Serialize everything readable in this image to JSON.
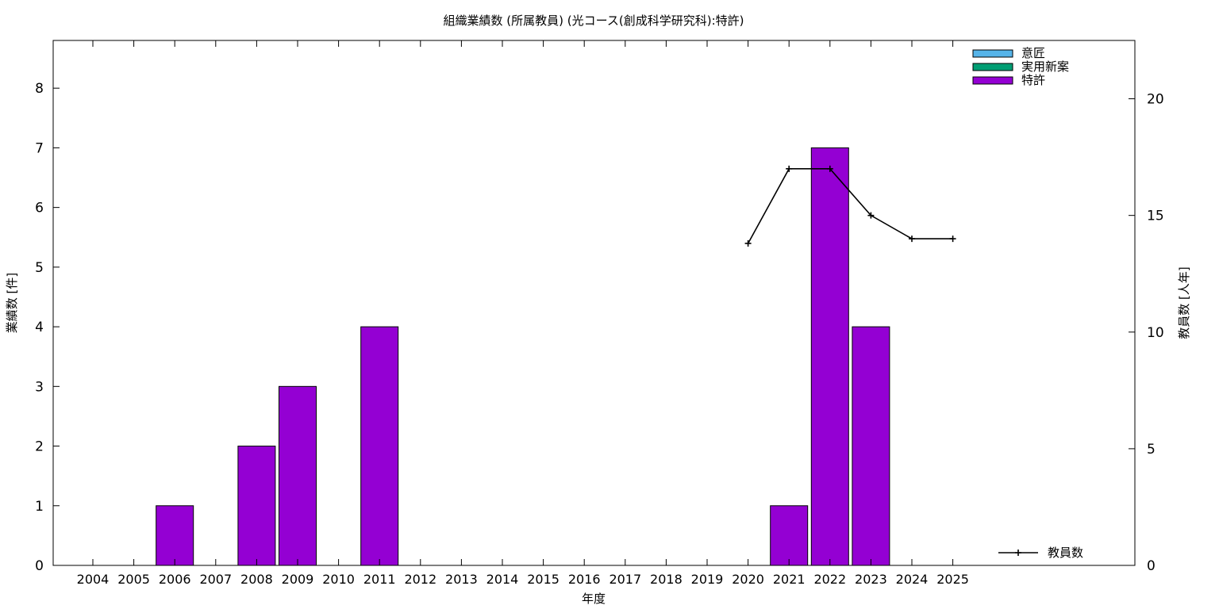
{
  "chart_data": {
    "type": "bar",
    "title": "組織業績数 (所属教員) (光コース(創成科学研究科):特許)",
    "xlabel": "年度",
    "ylabel": "業績数 [件]",
    "y2label": "教員数 [人年]",
    "categories": [
      "2004",
      "2005",
      "2006",
      "2007",
      "2008",
      "2009",
      "2010",
      "2011",
      "2012",
      "2013",
      "2014",
      "2015",
      "2016",
      "2017",
      "2018",
      "2019",
      "2020",
      "2021",
      "2022",
      "2023",
      "2024",
      "2025"
    ],
    "ylim": [
      0,
      8.8
    ],
    "yticks": [
      0,
      1,
      2,
      3,
      4,
      5,
      6,
      7,
      8
    ],
    "y2lim": [
      0,
      22.5
    ],
    "y2ticks": [
      0,
      5,
      10,
      15,
      20
    ],
    "series": [
      {
        "name": "意匠",
        "color": "#56b4e9",
        "values": [
          0,
          0,
          0,
          0,
          0,
          0,
          0,
          0,
          0,
          0,
          0,
          0,
          0,
          0,
          0,
          0,
          0,
          0,
          0,
          0,
          0,
          0
        ]
      },
      {
        "name": "実用新案",
        "color": "#009e73",
        "values": [
          0,
          0,
          0,
          0,
          0,
          0,
          0,
          0,
          0,
          0,
          0,
          0,
          0,
          0,
          0,
          0,
          0,
          0,
          0,
          0,
          0,
          0
        ]
      },
      {
        "name": "特許",
        "color": "#9400d3",
        "values": [
          0,
          0,
          1,
          0,
          2,
          3,
          0,
          4,
          0,
          0,
          0,
          0,
          0,
          0,
          0,
          0,
          0,
          1,
          7,
          4,
          0,
          0
        ]
      }
    ],
    "line_series": {
      "name": "教員数",
      "color": "#000000",
      "axis": "right",
      "x": [
        "2020",
        "2021",
        "2022",
        "2023",
        "2024",
        "2025"
      ],
      "values": [
        13.8,
        17.0,
        17.0,
        15.0,
        14.0,
        14.0
      ]
    },
    "legend_position": "top-right",
    "line_legend_position": "bottom-right",
    "grid": false
  }
}
